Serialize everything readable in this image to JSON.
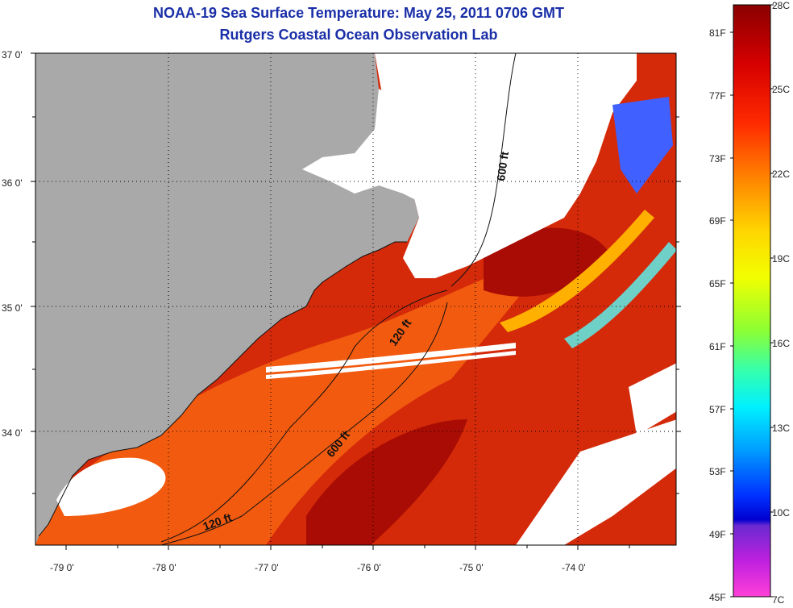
{
  "title": {
    "line1": "NOAA-19 Sea Surface Temperature:  May 25, 2011 0706 GMT",
    "line2": "Rutgers Coastal Ocean Observation Lab"
  },
  "map": {
    "lat_labels": [
      "37 0'",
      "36 0'",
      "35 0'",
      "34 0'"
    ],
    "lon_labels": [
      "-79 0'",
      "-78 0'",
      "-77 0'",
      "-76 0'",
      "-75 0'",
      "-74 0'"
    ],
    "contours": [
      "600 ft",
      "120 ft",
      "600 ft",
      "120 ft"
    ],
    "colors": {
      "land": "#a9a9a9",
      "cloud": "#ffffff",
      "warm": "#d42a0a",
      "hot": "#a80c04",
      "mid": "#f25a0f"
    }
  },
  "colorbar": {
    "c_labels": [
      "28C",
      "25C",
      "22C",
      "19C",
      "16C",
      "13C",
      "10C",
      "7C"
    ],
    "f_labels": [
      "81F",
      "77F",
      "73F",
      "69F",
      "65F",
      "61F",
      "57F",
      "53F",
      "49F",
      "45F"
    ]
  }
}
